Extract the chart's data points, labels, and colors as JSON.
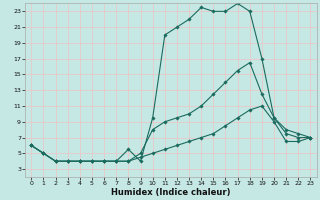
{
  "xlabel": "Humidex (Indice chaleur)",
  "bg_color": "#c5e8e5",
  "grid_color": "#e8c8c8",
  "line_color": "#1a6b5e",
  "xlim": [
    -0.5,
    23.5
  ],
  "ylim": [
    2,
    24
  ],
  "yticks": [
    3,
    5,
    7,
    9,
    11,
    13,
    15,
    17,
    19,
    21,
    23
  ],
  "xticks": [
    0,
    1,
    2,
    3,
    4,
    5,
    6,
    7,
    8,
    9,
    10,
    11,
    12,
    13,
    14,
    15,
    16,
    17,
    18,
    19,
    20,
    21,
    22,
    23
  ],
  "series": [
    {
      "x": [
        0,
        1,
        2,
        3,
        4,
        5,
        6,
        7,
        8,
        9,
        10,
        11,
        12,
        13,
        14,
        15,
        16,
        17,
        18,
        19,
        20,
        21,
        22,
        23
      ],
      "y": [
        6,
        5,
        4,
        4,
        4,
        4,
        4,
        4,
        5.5,
        4,
        9.5,
        20,
        21,
        22,
        23.5,
        23,
        23,
        24,
        23,
        17,
        9.5,
        8,
        7.5,
        7
      ]
    },
    {
      "x": [
        0,
        1,
        2,
        3,
        4,
        5,
        6,
        7,
        8,
        9,
        10,
        11,
        12,
        13,
        14,
        15,
        16,
        17,
        18,
        19,
        20,
        21,
        22,
        23
      ],
      "y": [
        6,
        5,
        4,
        4,
        4,
        4,
        4,
        4,
        4,
        5,
        8,
        9,
        9.5,
        10,
        11,
        12.5,
        14,
        15.5,
        16.5,
        12.5,
        9.5,
        7.5,
        7,
        7
      ]
    },
    {
      "x": [
        0,
        1,
        2,
        3,
        4,
        5,
        6,
        7,
        8,
        9,
        10,
        11,
        12,
        13,
        14,
        15,
        16,
        17,
        18,
        19,
        20,
        21,
        22,
        23
      ],
      "y": [
        6,
        5,
        4,
        4,
        4,
        4,
        4,
        4,
        4,
        4.5,
        5,
        5.5,
        6,
        6.5,
        7,
        7.5,
        8.5,
        9.5,
        10.5,
        11,
        9,
        6.5,
        6.5,
        7
      ]
    }
  ]
}
